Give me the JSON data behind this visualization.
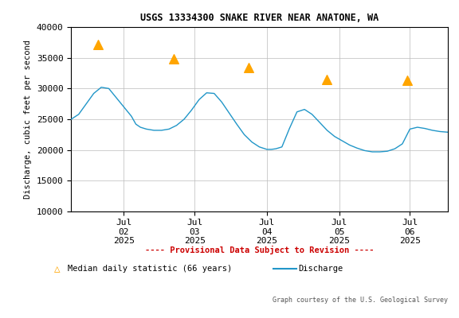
{
  "title": "USGS 13334300 SNAKE RIVER NEAR ANATONE, WA",
  "ylabel": "Discharge, cubic feet per second",
  "ylim": [
    10000,
    40000
  ],
  "yticks": [
    10000,
    15000,
    20000,
    25000,
    30000,
    35000,
    40000
  ],
  "background_color": "#ffffff",
  "plot_bg": "#ffffff",
  "line_color": "#2196c8",
  "triangle_color": "#ffa500",
  "provisional_color": "#cc0000",
  "footer_text": "Graph courtesy of the U.S. Geological Survey",
  "legend_provisional": "---- Provisional Data Subject to Revision ----",
  "legend_median": "Median daily statistic (66 years)",
  "legend_discharge": "Discharge",
  "xtick_labels": [
    "Jul\n02\n2025",
    "Jul\n03\n2025",
    "Jul\n04\n2025",
    "Jul\n05\n2025",
    "Jul\n06\n2025"
  ],
  "discharge_x": [
    0.0,
    0.5,
    1.0,
    1.5,
    2.0,
    2.5,
    3.0,
    3.5,
    4.0,
    4.3,
    4.6,
    5.0,
    5.5,
    6.0,
    6.5,
    7.0,
    7.5,
    8.0,
    8.5,
    9.0,
    9.5,
    10.0,
    10.5,
    11.0,
    11.5,
    12.0,
    12.5,
    13.0,
    13.3,
    13.6,
    14.0,
    14.5,
    15.0,
    15.5,
    16.0,
    16.5,
    17.0,
    17.5,
    18.0,
    18.5,
    19.0,
    19.5,
    20.0,
    20.5,
    21.0,
    21.5,
    22.0,
    22.5,
    23.0,
    23.5,
    24.0,
    24.5,
    25.0
  ],
  "discharge_y": [
    25000,
    25800,
    27500,
    29200,
    30200,
    30000,
    28500,
    27000,
    25500,
    24200,
    23700,
    23400,
    23200,
    23200,
    23400,
    24000,
    25000,
    26500,
    28200,
    29300,
    29200,
    27800,
    26000,
    24200,
    22500,
    21300,
    20500,
    20100,
    20100,
    20200,
    20500,
    23500,
    26200,
    26600,
    25800,
    24500,
    23200,
    22200,
    21500,
    20800,
    20300,
    19900,
    19700,
    19700,
    19800,
    20200,
    21000,
    23400,
    23700,
    23500,
    23200,
    23000,
    22900
  ],
  "median_x": [
    1.8,
    6.8,
    11.8,
    17.0,
    22.3
  ],
  "median_y": [
    37200,
    34800,
    33400,
    31500,
    31300
  ],
  "xtick_positions": [
    3.5,
    8.2,
    13.0,
    17.8,
    22.5
  ],
  "xlim": [
    0,
    25
  ],
  "n_cols_grid": 5,
  "grid_color": "#bbbbbb"
}
